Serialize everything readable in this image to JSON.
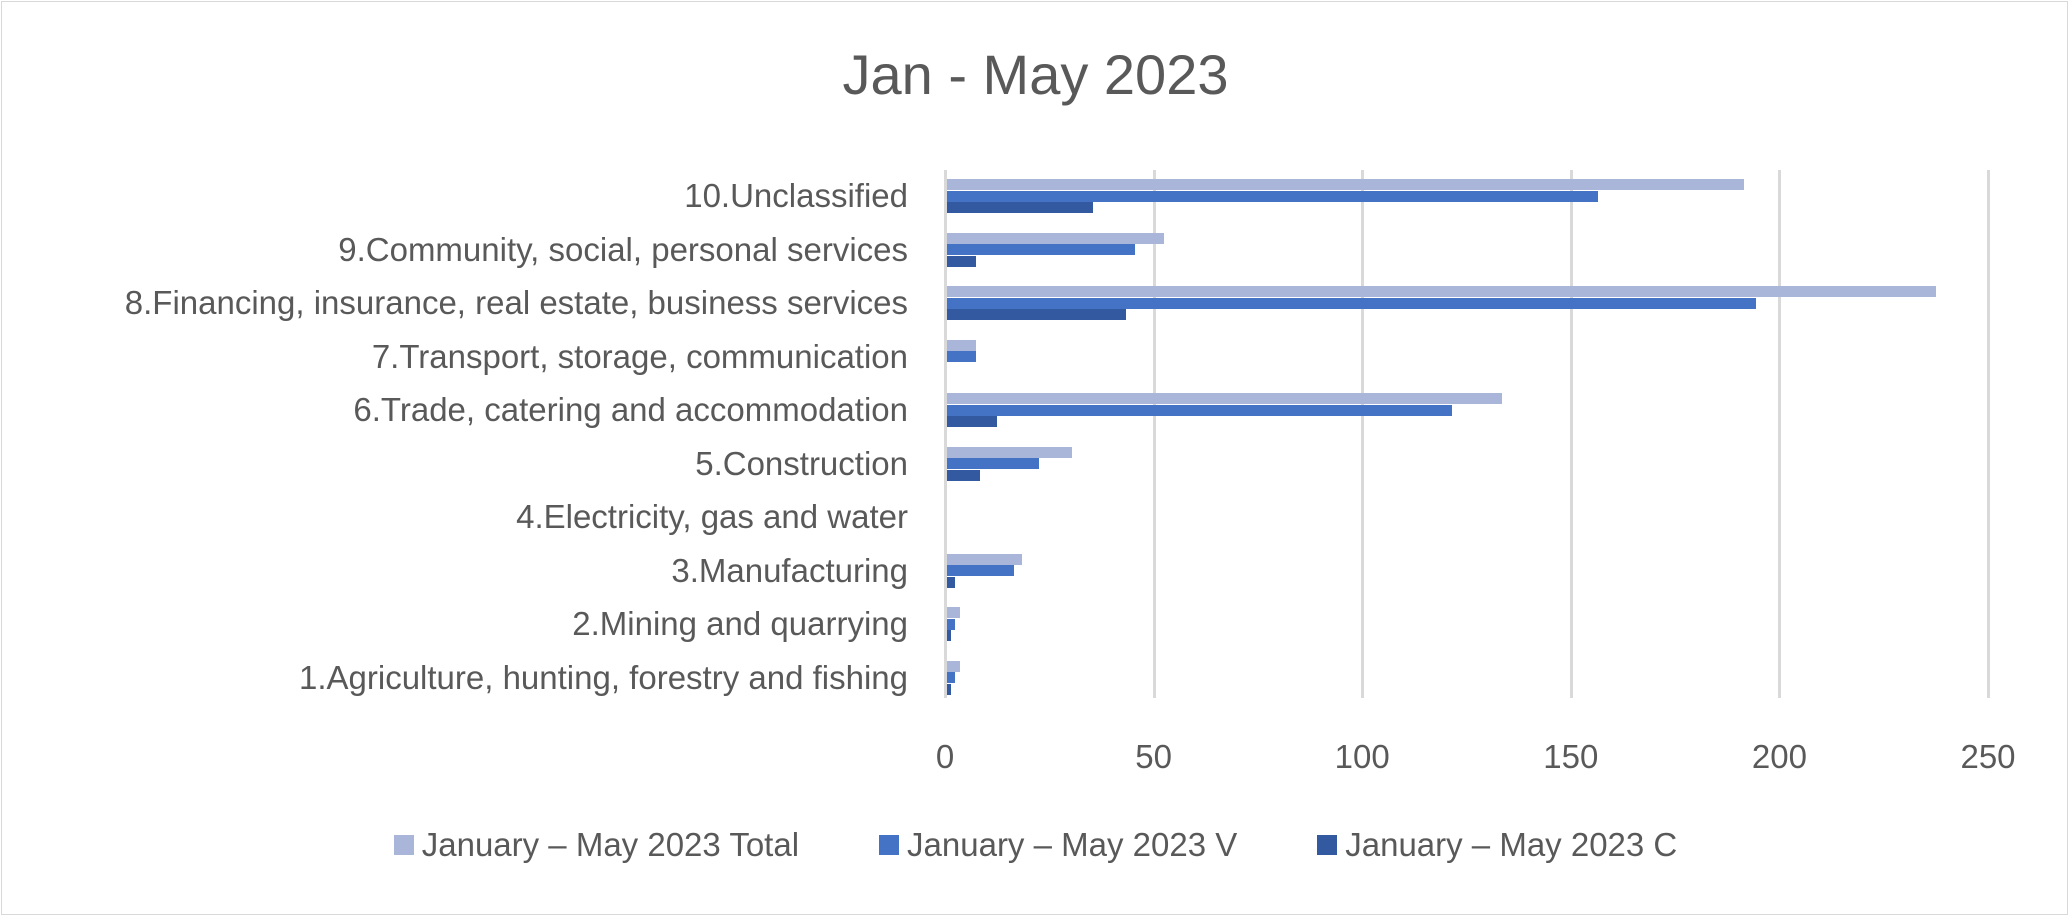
{
  "chart_data": {
    "type": "bar",
    "orientation": "horizontal",
    "title": "Jan - May 2023",
    "xlabel": "",
    "ylabel": "",
    "xlim": [
      0,
      250
    ],
    "x_ticks": [
      "0",
      "50",
      "100",
      "150",
      "200",
      "250"
    ],
    "grid": "vertical",
    "legend_position": "bottom",
    "categories": [
      "1.Agriculture, hunting, forestry and fishing",
      "2.Mining and quarrying",
      "3.Manufacturing",
      "4.Electricity, gas and water",
      "5.Construction",
      "6.Trade, catering and accommodation",
      "7.Transport, storage, communication",
      "8.Financing, insurance, real estate, business services",
      "9.Community, social, personal services",
      "10.Unclassified"
    ],
    "series": [
      {
        "name": "January – May 2023 Total",
        "color": "#a9b6da",
        "values": [
          3,
          3,
          18,
          0,
          30,
          133,
          7,
          237,
          52,
          191
        ]
      },
      {
        "name": "January – May 2023 V",
        "color": "#4472c4",
        "values": [
          2,
          2,
          16,
          0,
          22,
          121,
          7,
          194,
          45,
          156
        ]
      },
      {
        "name": "January – May 2023 C",
        "color": "#335aa1",
        "values": [
          1,
          1,
          2,
          0,
          8,
          12,
          0,
          43,
          7,
          35
        ]
      }
    ]
  }
}
